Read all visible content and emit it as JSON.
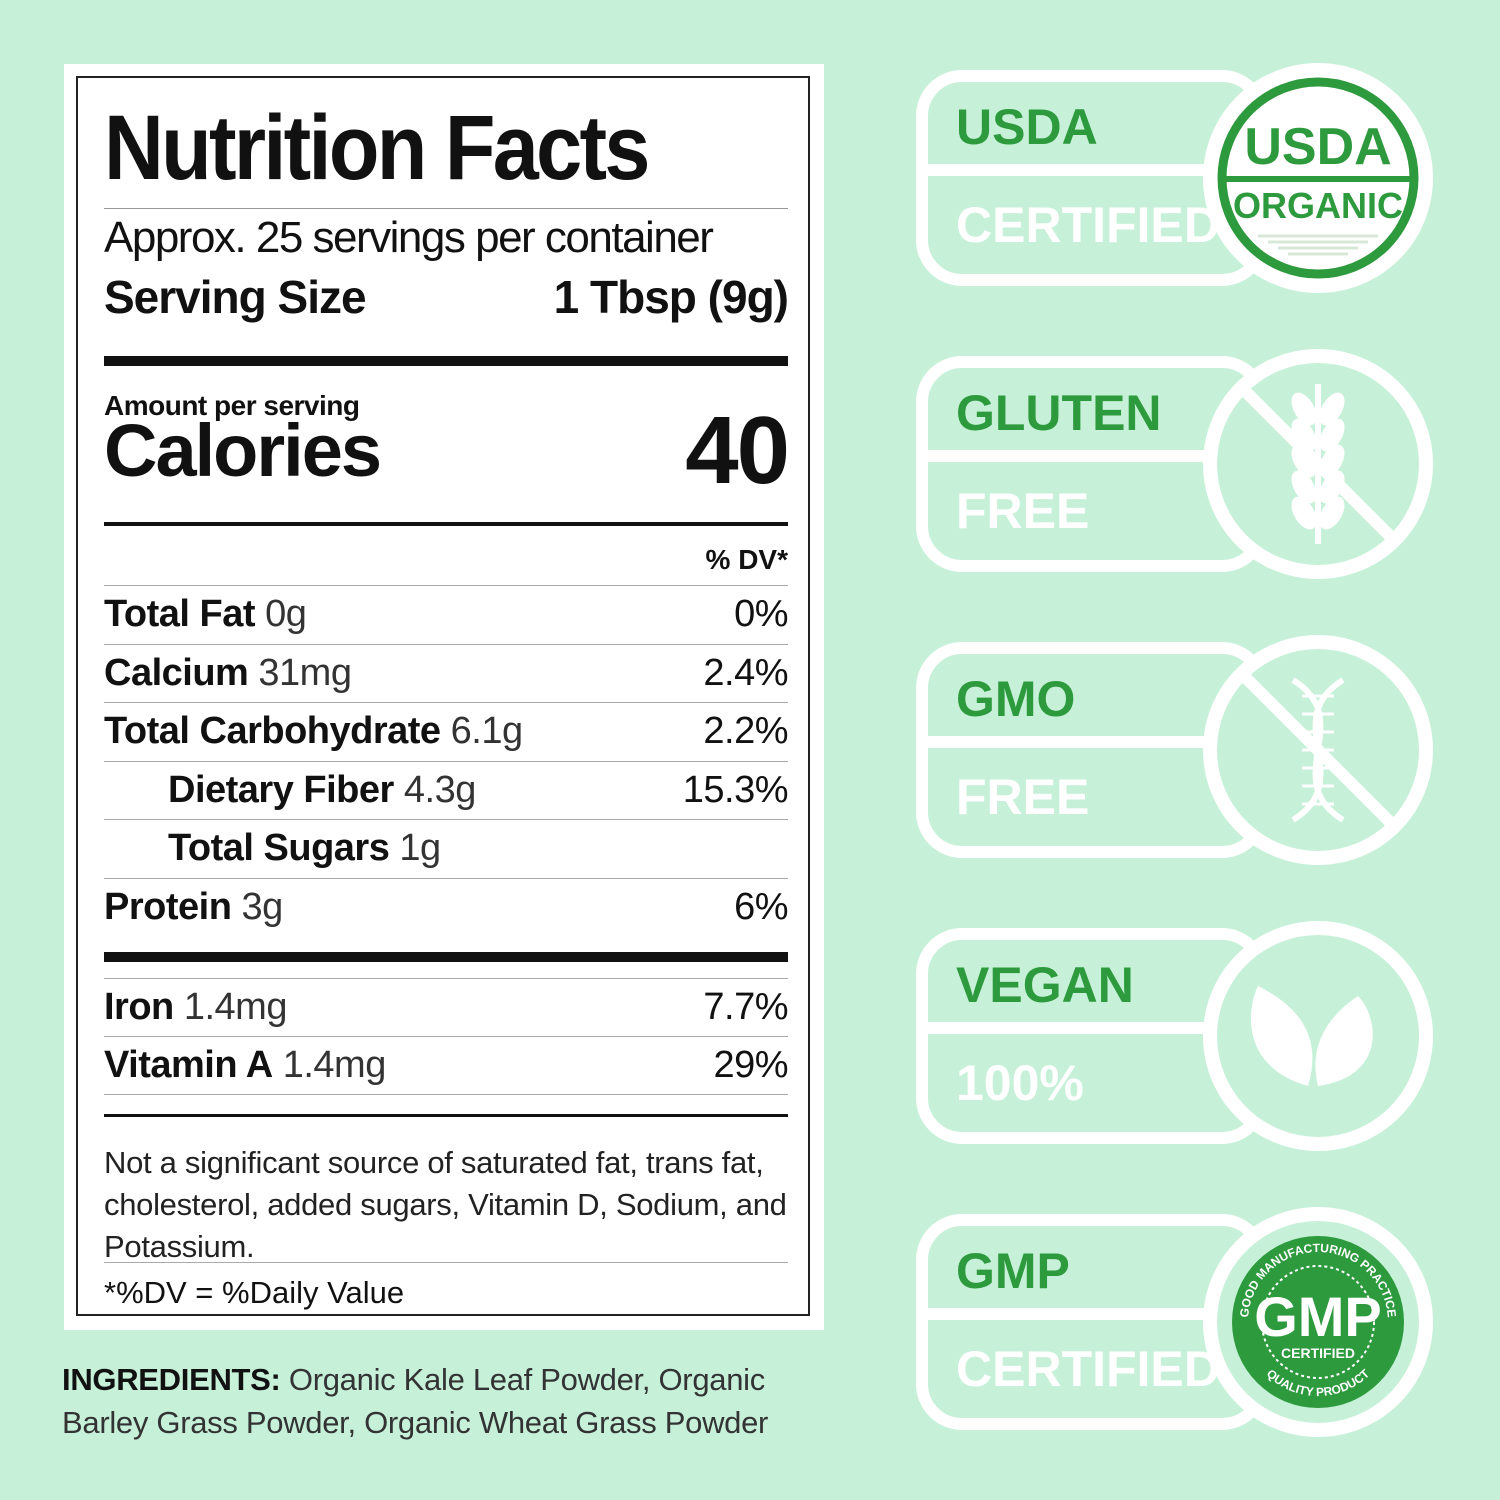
{
  "nutrition": {
    "title": "Nutrition Facts",
    "servings": "Approx. 25 servings per container",
    "serving_size_label": "Serving Size",
    "serving_size": "1 Tbsp (9g)",
    "amount_per_serving": "Amount per serving",
    "calories_label": "Calories",
    "calories": 40,
    "dv_header": "% DV*",
    "rows": [
      {
        "name": "Total Fat",
        "amount": "0g",
        "dv": "0%"
      },
      {
        "name": "Calcium",
        "amount": "31mg",
        "dv": "2.4%"
      },
      {
        "name": "Total Carbohydrate",
        "amount": "6.1g",
        "dv": "2.2%",
        "sub": [
          {
            "name": "Dietary Fiber",
            "amount": "4.3g",
            "dv": "15.3%"
          },
          {
            "name": "Total Sugars",
            "amount": "1g"
          }
        ]
      },
      {
        "name": "Protein",
        "amount": "3g",
        "dv": "6%"
      }
    ],
    "vitamins": [
      {
        "name": "Iron",
        "amount": "1.4mg",
        "dv": "7.7%"
      },
      {
        "name": "Vitamin A",
        "amount": "1.4mg",
        "dv": "29%"
      }
    ],
    "footnote": "Not a significant source of saturated fat, trans fat, cholesterol, added sugars, Vitamin D, Sodium, and Potassium.",
    "dv_note": "*%DV = %Daily Value"
  },
  "ingredients": {
    "label": "INGREDIENTS:",
    "text": "Organic Kale Leaf Powder, Organic Barley Grass Powder, Organic Wheat Grass Powder"
  },
  "badges": [
    {
      "title": "USDA",
      "subtitle": "CERTIFIED",
      "seal": [
        "USDA",
        "ORGANIC"
      ]
    },
    {
      "title": "GLUTEN",
      "subtitle": "FREE"
    },
    {
      "title": "GMO",
      "subtitle": "FREE"
    },
    {
      "title": "VEGAN",
      "subtitle": "100%"
    },
    {
      "title": "GMP",
      "subtitle": "CERTIFIED",
      "seal": [
        "GMP",
        "CERTIFIED",
        "GOOD MANUFACTURING PRACTICE",
        "QUALITY PRODUCT"
      ]
    }
  ]
}
